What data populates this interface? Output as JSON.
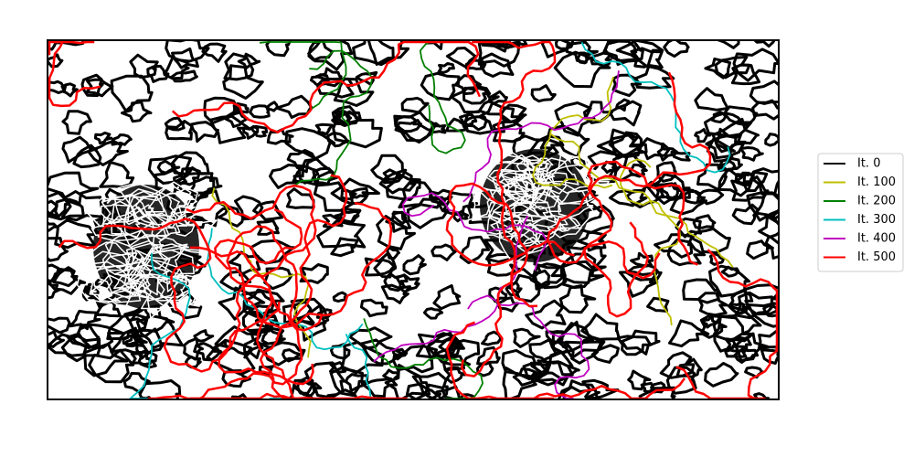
{
  "legend": {
    "entries": [
      {
        "label": "It. 0",
        "color": "#000000"
      },
      {
        "label": "It. 100",
        "color": "#bfbf00"
      },
      {
        "label": "It. 200",
        "color": "#008000"
      },
      {
        "label": "It. 300",
        "color": "#00bfbf"
      },
      {
        "label": "It. 400",
        "color": "#bf00bf"
      },
      {
        "label": "It. 500",
        "color": "#ff0000"
      }
    ]
  }
}
